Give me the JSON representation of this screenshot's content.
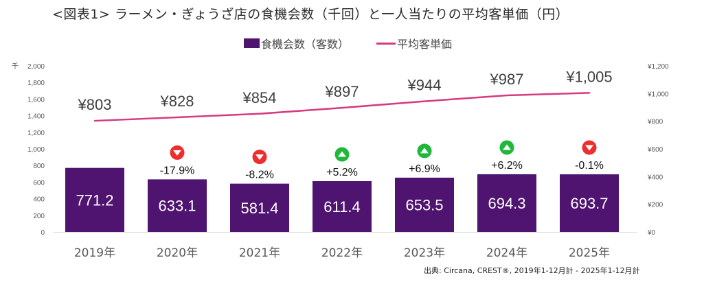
{
  "title": "<図表1> ラーメン・ぎょうざ店の食機会数（千回）と一人当たりの平均客単価（円）",
  "legend": {
    "bar_label": "食機会数（客数）",
    "line_label": "平均客単価"
  },
  "source": "出典: Circana, CREST®, 2019年1-12月計 - 2025年1-12月計",
  "colors": {
    "bar": "#4f1470",
    "line": "#d63a7d",
    "up": "#1fb83a",
    "down": "#ee2d2d",
    "axis": "#d9d9d9"
  },
  "chart_data": {
    "type": "bar",
    "title": "<図表1> ラーメン・ぎょうざ店の食機会数（千回）と一人当たりの平均客単価（円）",
    "categories": [
      "2019年",
      "2020年",
      "2021年",
      "2022年",
      "2023年",
      "2024年",
      "2025年"
    ],
    "series": [
      {
        "name": "食機会数（客数）",
        "type": "bar",
        "axis": "left",
        "values": [
          771.2,
          633.1,
          581.4,
          611.4,
          653.5,
          694.3,
          693.7
        ],
        "labels": [
          "771.2",
          "633.1",
          "581.4",
          "611.4",
          "653.5",
          "694.3",
          "693.7"
        ]
      },
      {
        "name": "平均客単価",
        "type": "line",
        "axis": "right",
        "values": [
          803,
          828,
          854,
          897,
          944,
          987,
          1005
        ],
        "labels": [
          "¥803",
          "¥828",
          "¥854",
          "¥897",
          "¥944",
          "¥987",
          "¥1,005"
        ]
      }
    ],
    "yoy_change": {
      "labels": [
        null,
        "-17.9%",
        "-8.2%",
        "+5.2%",
        "+6.9%",
        "+6.2%",
        "-0.1%"
      ],
      "direction": [
        null,
        "down",
        "down",
        "up",
        "up",
        "up",
        "down"
      ]
    },
    "left_axis": {
      "unit_label": "千",
      "ylim": [
        0,
        2000
      ],
      "ticks": [
        "0",
        "200",
        "400",
        "600",
        "800",
        "1,000",
        "1,200",
        "1,400",
        "1,600",
        "1,800",
        "2,000"
      ]
    },
    "right_axis": {
      "ylim": [
        0,
        1200
      ],
      "ticks": [
        "¥0",
        "¥200",
        "¥400",
        "¥600",
        "¥800",
        "¥1,000",
        "¥1,200"
      ]
    },
    "xlabel": "",
    "grid": false,
    "legend_position": "top-center"
  }
}
